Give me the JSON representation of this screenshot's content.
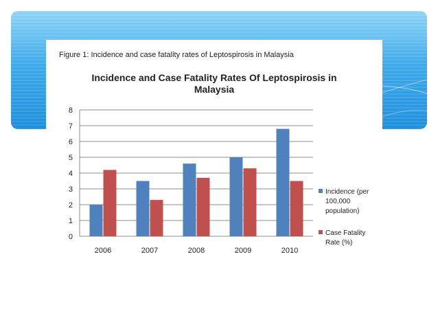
{
  "figure_caption": "Figure 1: Incidence and case fatality rates of Leptospirosis in Malaysia",
  "colors": {
    "incidence": "#4f81bd",
    "case_fatality": "#c0504d",
    "gridline": "#8c8c8c",
    "text": "#222222"
  },
  "chart_data": {
    "type": "bar",
    "title": "Incidence and Case Fatality Rates Of Leptospirosis in Malaysia",
    "title_lines": [
      "Incidence and Case Fatality Rates Of Leptospirosis in",
      "Malaysia"
    ],
    "categories": [
      "2006",
      "2007",
      "2008",
      "2009",
      "2010"
    ],
    "series": [
      {
        "name": "Incidence (per 100,000 population)",
        "legend_lines": [
          "Incidence (per",
          "100,000",
          "population)"
        ],
        "values": [
          2.0,
          3.5,
          4.6,
          5.0,
          6.8
        ]
      },
      {
        "name": "Case Fatality Rate (%)",
        "legend_lines": [
          "Case Fatality",
          "Rate (%)"
        ],
        "values": [
          4.2,
          2.3,
          3.7,
          4.3,
          3.5
        ]
      }
    ],
    "ylim": [
      0,
      8
    ],
    "yticks": [
      "0",
      "1",
      "2",
      "3",
      "4",
      "5",
      "6",
      "7",
      "8"
    ],
    "grid": true,
    "xlabel": "",
    "ylabel": "",
    "legend_position": "right"
  }
}
